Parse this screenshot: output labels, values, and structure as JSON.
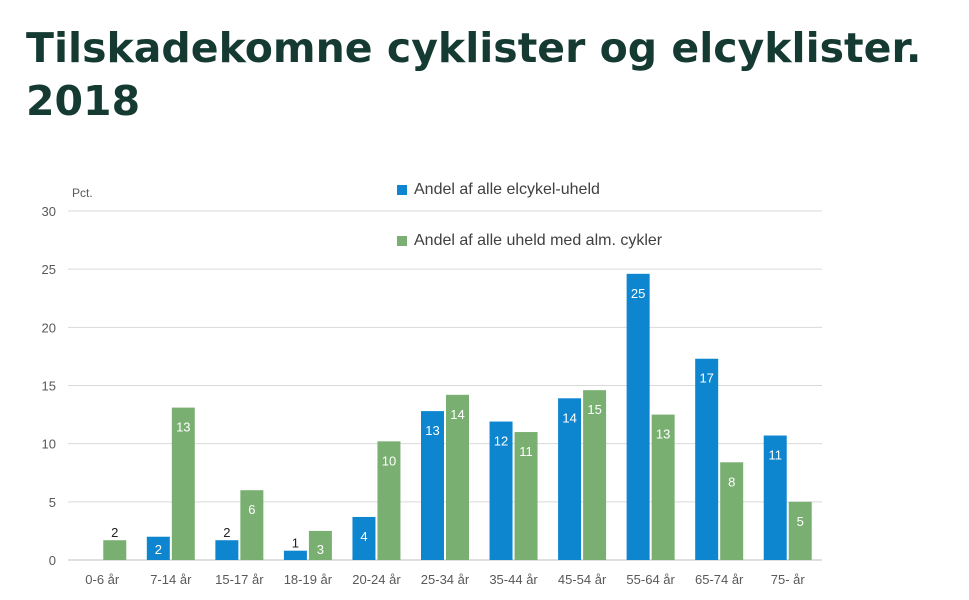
{
  "chart_data": {
    "type": "bar",
    "title": "Tilskadekomne cyklister og elcyklister. 2018",
    "ylabel": "Pct.",
    "xlabel": "",
    "ylim": [
      0,
      30
    ],
    "yticks": [
      0,
      5,
      10,
      15,
      20,
      25,
      30
    ],
    "grid": true,
    "legend_position": "top",
    "categories": [
      "0-6 år",
      "7-14 år",
      "15-17 år",
      "18-19 år",
      "20-24 år",
      "25-34 år",
      "35-44 år",
      "45-54 år",
      "55-64 år",
      "65-74 år",
      "75- år"
    ],
    "series": [
      {
        "name": "Andel af alle elcykel-uheld",
        "color": "#0d86cf",
        "values": [
          0,
          2,
          1.7,
          0.8,
          3.7,
          12.8,
          11.9,
          13.9,
          24.6,
          17.3,
          10.7
        ],
        "labels": [
          "",
          "2",
          "2",
          "1",
          "4",
          "13",
          "12",
          "14",
          "25",
          "17",
          "11"
        ]
      },
      {
        "name": "Andel af alle uheld med alm. cykler",
        "color": "#7aaf72",
        "values": [
          1.7,
          13.1,
          6,
          2.5,
          10.2,
          14.2,
          11,
          14.6,
          12.5,
          8.4,
          5
        ],
        "labels": [
          "2",
          "13",
          "6",
          "3",
          "10",
          "14",
          "11",
          "15",
          "13",
          "8",
          "5"
        ]
      }
    ]
  }
}
